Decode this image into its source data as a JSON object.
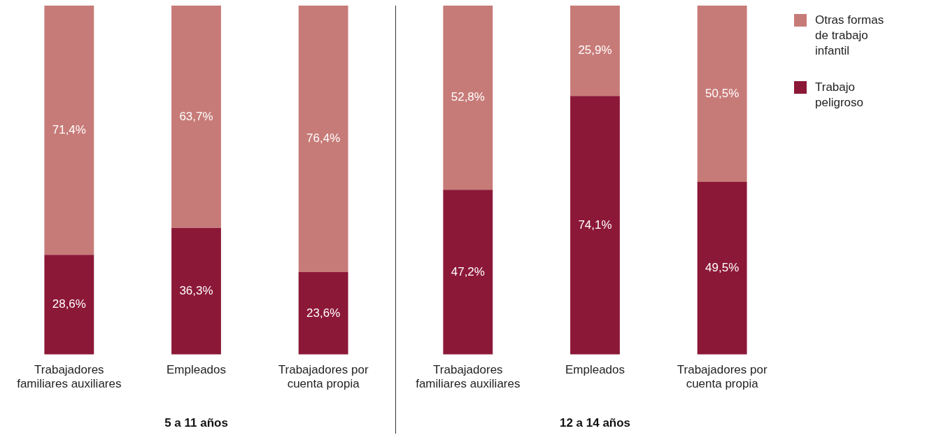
{
  "chart_data": [
    {
      "type": "bar",
      "stacked": true,
      "xlabel": "5 a 11 años",
      "categories": [
        "Trabajadores familiares auxiliares",
        "Empleados",
        "Trabajadores por cuenta propia"
      ],
      "legend": false,
      "grid": false,
      "series": [
        {
          "color": "#8c1838",
          "values": [
            28.6,
            36.3,
            23.6
          ],
          "value_labels": [
            "28,6%",
            "36,3%",
            "23,6%"
          ]
        },
        {
          "color": "#c77b78",
          "values": [
            71.4,
            63.7,
            76.4
          ],
          "value_labels": [
            "71,4%",
            "63,7%",
            "76,4%"
          ]
        }
      ]
    },
    {
      "type": "bar",
      "stacked": true,
      "xlabel": "12 a 14 años",
      "categories": [
        "Trabajadores familiares auxiliares",
        "Empleados",
        "Trabajadores por cuenta propia"
      ],
      "legend": "right",
      "grid": false,
      "series": [
        {
          "name": "Trabajo peligroso",
          "color": "#8c1838",
          "values": [
            47.2,
            74.1,
            49.5
          ],
          "value_labels": [
            "47,2%",
            "74,1%",
            "49,5%"
          ]
        },
        {
          "name": "Otras formas de trabajo infantil",
          "color": "#c77b78",
          "values": [
            52.8,
            25.9,
            50.5
          ],
          "value_labels": [
            "52,8%",
            "25,9%",
            "50,5%"
          ]
        }
      ]
    }
  ]
}
